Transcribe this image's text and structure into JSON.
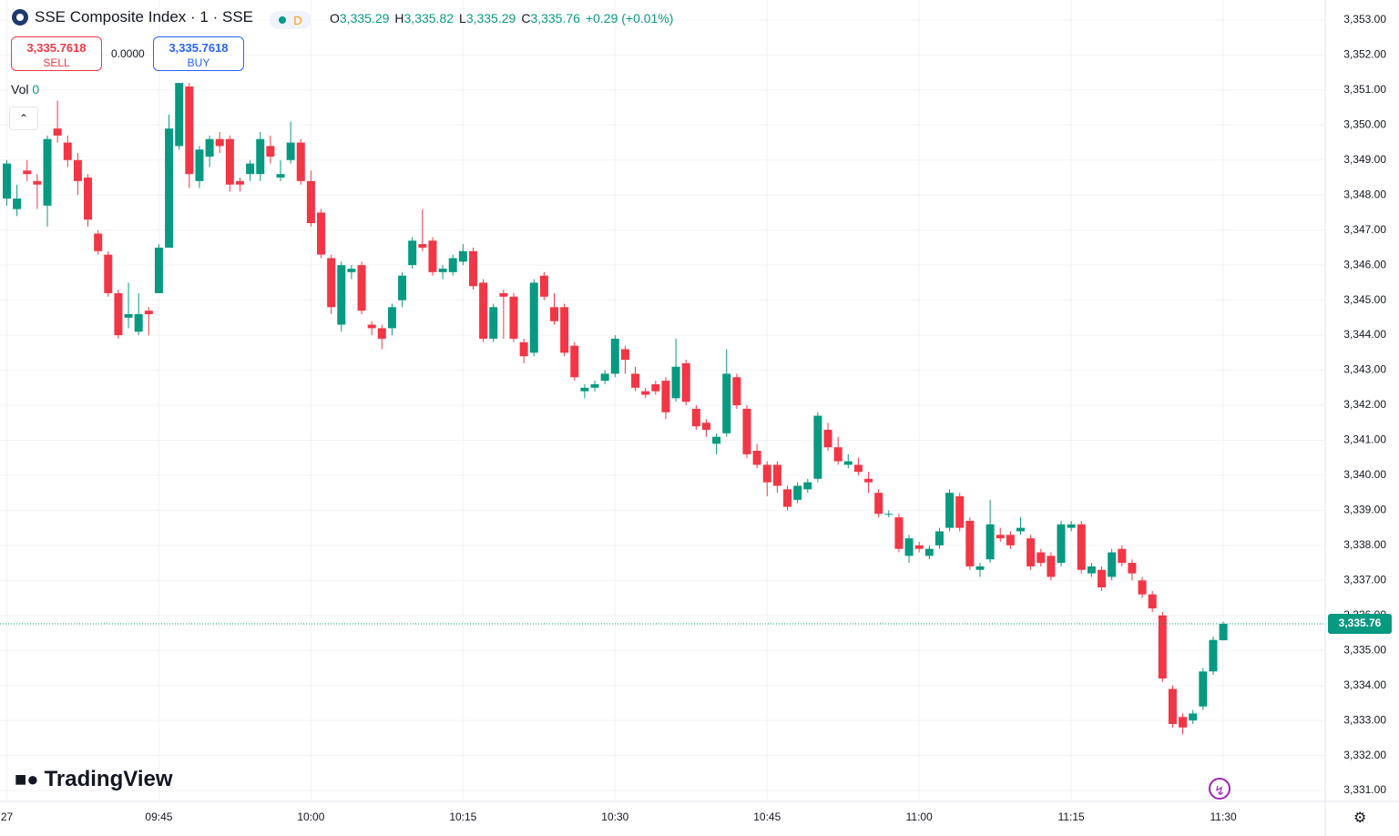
{
  "header": {
    "symbol": "SSE Composite Index · 1 · SSE",
    "badge": "D",
    "ohlc": [
      {
        "label": "O",
        "value": "3,335.29"
      },
      {
        "label": "H",
        "value": "3,335.82"
      },
      {
        "label": "L",
        "value": "3,335.29"
      },
      {
        "label": "C",
        "value": "3,335.76"
      }
    ],
    "change": "+0.29 (+0.01%)",
    "sell_price": "3,335.7618",
    "sell_label": "SELL",
    "spread": "0.0000",
    "buy_price": "3,335.7618",
    "buy_label": "BUY",
    "volume_label": "Vol",
    "volume_value": "0",
    "brand": "TradingView"
  },
  "chart_data": {
    "type": "candlestick",
    "up_color": "#089981",
    "down_color": "#f23645",
    "grid": true,
    "ylim": [
      3330.69,
      3353.57
    ],
    "yticks": [
      {
        "value": 3331,
        "label": "3,331.00"
      },
      {
        "value": 3332,
        "label": "3,332.00"
      },
      {
        "value": 3333,
        "label": "3,333.00"
      },
      {
        "value": 3334,
        "label": "3,334.00"
      },
      {
        "value": 3335,
        "label": "3,335.00"
      },
      {
        "value": 3336,
        "label": "3,336.00"
      },
      {
        "value": 3337,
        "label": "3,337.00"
      },
      {
        "value": 3338,
        "label": "3,338.00"
      },
      {
        "value": 3339,
        "label": "3,339.00"
      },
      {
        "value": 3340,
        "label": "3,340.00"
      },
      {
        "value": 3341,
        "label": "3,341.00"
      },
      {
        "value": 3342,
        "label": "3,342.00"
      },
      {
        "value": 3343,
        "label": "3,343.00"
      },
      {
        "value": 3344,
        "label": "3,344.00"
      },
      {
        "value": 3345,
        "label": "3,345.00"
      },
      {
        "value": 3346,
        "label": "3,346.00"
      },
      {
        "value": 3347,
        "label": "3,347.00"
      },
      {
        "value": 3348,
        "label": "3,348.00"
      },
      {
        "value": 3349,
        "label": "3,349.00"
      },
      {
        "value": 3350,
        "label": "3,350.00"
      },
      {
        "value": 3351,
        "label": "3,351.00"
      },
      {
        "value": 3352,
        "label": "3,352.00"
      },
      {
        "value": 3353,
        "label": "3,353.00"
      }
    ],
    "last_price": {
      "value": 3335.76,
      "label": "3,335.76"
    },
    "categories": [
      "27",
      null,
      null,
      null,
      null,
      null,
      null,
      null,
      null,
      null,
      null,
      null,
      null,
      null,
      null,
      "09:45",
      null,
      null,
      null,
      null,
      null,
      null,
      null,
      null,
      null,
      null,
      null,
      null,
      null,
      null,
      "10:00",
      null,
      null,
      null,
      null,
      null,
      null,
      null,
      null,
      null,
      null,
      null,
      null,
      null,
      null,
      "10:15",
      null,
      null,
      null,
      null,
      null,
      null,
      null,
      null,
      null,
      null,
      null,
      null,
      null,
      null,
      "10:30",
      null,
      null,
      null,
      null,
      null,
      null,
      null,
      null,
      null,
      null,
      null,
      null,
      null,
      null,
      "10:45",
      null,
      null,
      null,
      null,
      null,
      null,
      null,
      null,
      null,
      null,
      null,
      null,
      null,
      null,
      "11:00",
      null,
      null,
      null,
      null,
      null,
      null,
      null,
      null,
      null,
      null,
      null,
      null,
      null,
      null,
      "11:15",
      null,
      null,
      null,
      null,
      null,
      null,
      null,
      null,
      null,
      null,
      null,
      null,
      null,
      null,
      "11:30"
    ],
    "open": [
      3347.9,
      3347.6,
      3348.7,
      3348.4,
      3347.7,
      3349.9,
      3349.5,
      3349.0,
      3348.5,
      3346.9,
      3346.3,
      3345.2,
      3344.5,
      3344.1,
      3344.7,
      3345.2,
      3346.5,
      3349.4,
      3351.1,
      3348.4,
      3349.1,
      3349.6,
      3349.6,
      3348.4,
      3348.6,
      3348.6,
      3349.4,
      3348.5,
      3349.0,
      3349.5,
      3348.4,
      3347.5,
      3346.2,
      3344.3,
      3345.8,
      3346.0,
      3344.3,
      3344.2,
      3344.2,
      3345.0,
      3346.0,
      3346.6,
      3346.7,
      3345.8,
      3345.8,
      3346.1,
      3346.4,
      3345.5,
      3343.9,
      3345.2,
      3345.1,
      3343.8,
      3343.5,
      3345.7,
      3344.8,
      3344.8,
      3343.7,
      3342.4,
      3342.5,
      3342.7,
      3342.9,
      3343.6,
      3342.9,
      3342.4,
      3342.6,
      3342.7,
      3342.2,
      3343.2,
      3341.9,
      3341.5,
      3340.9,
      3341.2,
      3342.8,
      3341.9,
      3340.7,
      3340.3,
      3340.3,
      3339.6,
      3339.3,
      3339.6,
      3339.9,
      3341.3,
      3340.8,
      3340.3,
      3340.3,
      3339.9,
      3339.5,
      3338.9,
      3338.8,
      3337.7,
      3338.0,
      3337.7,
      3338.0,
      3338.5,
      3339.4,
      3338.7,
      3337.3,
      3337.6,
      3338.3,
      3338.3,
      3338.4,
      3338.2,
      3337.8,
      3337.7,
      3337.5,
      3338.5,
      3338.6,
      3337.2,
      3337.3,
      3337.1,
      3337.9,
      3337.5,
      3337.0,
      3336.6,
      3336.0,
      3333.9,
      3333.1,
      3333.0,
      3333.4,
      3334.4,
      3335.29
    ],
    "high": [
      3349.0,
      3348.3,
      3349.0,
      3348.6,
      3349.7,
      3350.7,
      3349.7,
      3349.2,
      3348.6,
      3347.0,
      3346.4,
      3345.3,
      3345.5,
      3345.2,
      3344.8,
      3346.6,
      3350.3,
      3351.2,
      3351.2,
      3349.4,
      3349.7,
      3349.8,
      3349.7,
      3348.5,
      3349.0,
      3349.8,
      3349.7,
      3349.0,
      3350.1,
      3349.6,
      3348.7,
      3347.6,
      3346.3,
      3346.1,
      3346.0,
      3346.1,
      3344.4,
      3344.3,
      3344.9,
      3345.8,
      3346.8,
      3347.6,
      3346.8,
      3346.0,
      3346.3,
      3346.6,
      3346.5,
      3345.6,
      3344.9,
      3345.3,
      3345.2,
      3343.9,
      3345.6,
      3345.8,
      3345.2,
      3344.9,
      3343.8,
      3342.6,
      3342.7,
      3343.0,
      3344.0,
      3343.7,
      3343.1,
      3342.5,
      3342.7,
      3342.8,
      3343.9,
      3343.3,
      3342.0,
      3341.6,
      3341.2,
      3343.6,
      3342.9,
      3342.0,
      3340.9,
      3340.4,
      3340.4,
      3339.7,
      3339.8,
      3339.9,
      3341.8,
      3341.5,
      3341.1,
      3340.6,
      3340.5,
      3340.1,
      3339.6,
      3339.0,
      3338.9,
      3338.3,
      3338.1,
      3338.0,
      3338.5,
      3339.6,
      3339.5,
      3338.8,
      3337.5,
      3339.3,
      3338.5,
      3338.4,
      3338.8,
      3338.3,
      3337.9,
      3337.8,
      3338.7,
      3338.7,
      3338.7,
      3337.5,
      3337.4,
      3337.9,
      3338.0,
      3337.6,
      3337.1,
      3336.7,
      3336.1,
      3334.0,
      3333.2,
      3333.3,
      3334.5,
      3335.4,
      3335.82
    ],
    "low": [
      3347.7,
      3347.4,
      3348.4,
      3347.6,
      3347.1,
      3349.5,
      3348.8,
      3348.0,
      3347.1,
      3346.3,
      3345.1,
      3343.9,
      3344.2,
      3344.0,
      3344.0,
      3345.2,
      3346.5,
      3349.3,
      3348.2,
      3348.2,
      3348.8,
      3349.2,
      3348.1,
      3348.1,
      3348.4,
      3348.4,
      3348.9,
      3348.4,
      3348.9,
      3348.3,
      3347.1,
      3346.2,
      3344.6,
      3344.1,
      3345.6,
      3344.6,
      3344.0,
      3343.6,
      3344.0,
      3344.8,
      3345.9,
      3346.4,
      3345.7,
      3345.6,
      3345.7,
      3346.0,
      3345.3,
      3343.8,
      3343.8,
      3343.9,
      3343.8,
      3343.2,
      3343.4,
      3345.0,
      3344.3,
      3343.4,
      3342.7,
      3342.2,
      3342.4,
      3342.6,
      3342.8,
      3342.9,
      3342.4,
      3342.2,
      3342.3,
      3341.6,
      3342.1,
      3342.0,
      3341.3,
      3341.1,
      3340.6,
      3341.1,
      3341.9,
      3340.5,
      3340.2,
      3339.4,
      3339.5,
      3339.0,
      3339.2,
      3339.5,
      3339.8,
      3340.7,
      3340.3,
      3340.2,
      3340.0,
      3339.5,
      3338.8,
      3338.8,
      3337.8,
      3337.5,
      3337.8,
      3337.6,
      3337.9,
      3338.4,
      3338.4,
      3337.3,
      3337.1,
      3337.5,
      3338.1,
      3337.9,
      3338.3,
      3337.3,
      3337.4,
      3337.0,
      3337.4,
      3338.4,
      3337.2,
      3337.1,
      3336.7,
      3337.0,
      3337.4,
      3337.0,
      3336.5,
      3336.1,
      3334.1,
      3332.8,
      3332.6,
      3332.9,
      3333.3,
      3334.3,
      3335.29
    ],
    "close": [
      3348.9,
      3347.9,
      3348.6,
      3348.3,
      3349.6,
      3349.7,
      3349.0,
      3348.4,
      3347.3,
      3346.4,
      3345.2,
      3344.0,
      3344.6,
      3344.6,
      3344.6,
      3346.5,
      3349.9,
      3351.2,
      3348.6,
      3349.3,
      3349.6,
      3349.4,
      3348.3,
      3348.3,
      3348.9,
      3349.6,
      3349.1,
      3348.6,
      3349.5,
      3348.4,
      3347.2,
      3346.3,
      3344.8,
      3346.0,
      3345.9,
      3344.7,
      3344.2,
      3343.9,
      3344.8,
      3345.7,
      3346.7,
      3346.5,
      3345.8,
      3345.9,
      3346.2,
      3346.4,
      3345.4,
      3343.9,
      3344.8,
      3345.1,
      3343.9,
      3343.4,
      3345.5,
      3345.1,
      3344.4,
      3343.5,
      3342.8,
      3342.5,
      3342.6,
      3342.9,
      3343.9,
      3343.3,
      3342.5,
      3342.3,
      3342.4,
      3341.8,
      3343.1,
      3342.1,
      3341.4,
      3341.3,
      3341.1,
      3342.9,
      3342.0,
      3340.6,
      3340.3,
      3339.8,
      3339.7,
      3339.1,
      3339.7,
      3339.8,
      3341.7,
      3340.8,
      3340.4,
      3340.4,
      3340.1,
      3339.8,
      3338.9,
      3338.9,
      3337.9,
      3338.2,
      3337.9,
      3337.9,
      3338.4,
      3339.5,
      3338.5,
      3337.4,
      3337.4,
      3338.6,
      3338.2,
      3338.0,
      3338.5,
      3337.4,
      3337.5,
      3337.1,
      3338.6,
      3338.6,
      3337.3,
      3337.4,
      3336.8,
      3337.8,
      3337.5,
      3337.2,
      3336.6,
      3336.2,
      3334.2,
      3332.9,
      3332.8,
      3333.2,
      3334.4,
      3335.3,
      3335.76
    ]
  }
}
